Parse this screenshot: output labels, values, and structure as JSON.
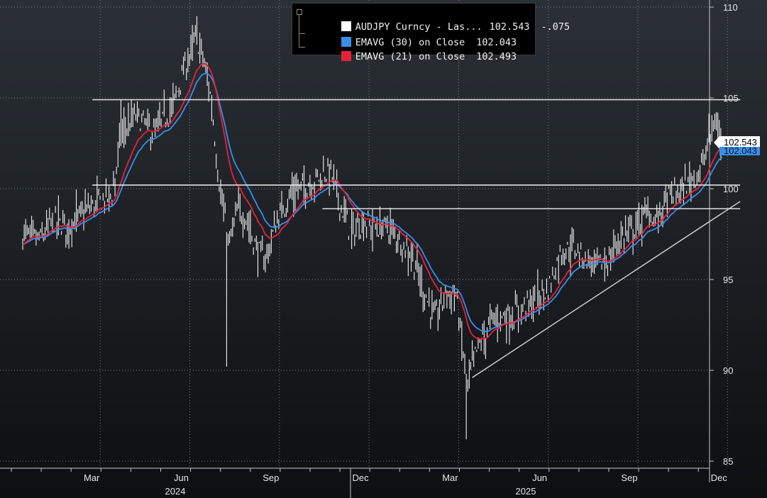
{
  "chart_data": {
    "type": "line",
    "instrument_label": "AUDJPY Curncy - Las...",
    "ylim": [
      85,
      110
    ],
    "y_ticks": [
      85,
      90,
      95,
      100,
      105,
      110
    ],
    "x_month_labels": [
      "Mar",
      "Jun",
      "Sep",
      "Dec",
      "Mar",
      "Jun",
      "Sep",
      "Dec"
    ],
    "x_month_index": [
      2,
      5,
      8,
      11,
      14,
      17,
      20,
      23
    ],
    "x_year_labels": [
      "2024",
      "2025"
    ],
    "grid": true,
    "legend_position": "top-center",
    "series": [
      {
        "name": "AUDJPY Curncy - Las...",
        "color": "#ffffff",
        "last": "102.543",
        "change": "-.075",
        "keypoints": [
          [
            0.0,
            97.5
          ],
          [
            0.6,
            97.2
          ],
          [
            1.0,
            98.2
          ],
          [
            1.5,
            97.9
          ],
          [
            2.0,
            98.6
          ],
          [
            2.5,
            99.2
          ],
          [
            3.0,
            99.7
          ],
          [
            3.3,
            103.0
          ],
          [
            3.8,
            104.0
          ],
          [
            4.4,
            103.0
          ],
          [
            5.0,
            104.4
          ],
          [
            5.4,
            106.5
          ],
          [
            5.8,
            108.3
          ],
          [
            6.0,
            107.5
          ],
          [
            6.3,
            105.0
          ],
          [
            6.6,
            100.0
          ],
          [
            6.9,
            96.8
          ],
          [
            7.2,
            98.8
          ],
          [
            7.5,
            98.4
          ],
          [
            7.8,
            96.8
          ],
          [
            8.1,
            96.0
          ],
          [
            8.5,
            98.2
          ],
          [
            9.0,
            99.8
          ],
          [
            9.5,
            100.2
          ],
          [
            10.0,
            100.7
          ],
          [
            10.3,
            101.0
          ],
          [
            10.6,
            99.3
          ],
          [
            11.0,
            97.5
          ],
          [
            11.4,
            98.2
          ],
          [
            11.8,
            97.8
          ],
          [
            12.2,
            97.9
          ],
          [
            12.6,
            97.2
          ],
          [
            13.0,
            96.5
          ],
          [
            13.4,
            94.5
          ],
          [
            13.8,
            92.8
          ],
          [
            14.2,
            94.3
          ],
          [
            14.5,
            94.2
          ],
          [
            14.7,
            91.5
          ],
          [
            14.9,
            89.0
          ],
          [
            15.1,
            90.7
          ],
          [
            15.4,
            91.8
          ],
          [
            15.7,
            92.7
          ],
          [
            16.0,
            93.0
          ],
          [
            16.4,
            93.0
          ],
          [
            16.8,
            93.5
          ],
          [
            17.2,
            93.9
          ],
          [
            17.6,
            94.5
          ],
          [
            18.0,
            96.5
          ],
          [
            18.4,
            96.8
          ],
          [
            18.8,
            96.2
          ],
          [
            19.2,
            95.8
          ],
          [
            19.6,
            96.0
          ],
          [
            20.0,
            97.3
          ],
          [
            20.3,
            97.6
          ],
          [
            20.6,
            98.0
          ],
          [
            20.9,
            98.7
          ],
          [
            21.2,
            98.2
          ],
          [
            21.6,
            99.6
          ],
          [
            22.0,
            99.8
          ],
          [
            22.4,
            100.5
          ],
          [
            22.8,
            101.4
          ],
          [
            23.0,
            103.0
          ],
          [
            23.2,
            103.7
          ],
          [
            23.42,
            102.543
          ]
        ]
      },
      {
        "name": "EMAVG (30) on Close",
        "color": "#3a8ee8",
        "last": "102.043",
        "span": 30
      },
      {
        "name": "EMAVG (21) on Close",
        "color": "#e8213a",
        "last": "102.493",
        "span": 21
      }
    ],
    "annotations": [
      {
        "type": "horizontal",
        "y": 104.9,
        "x_from": 2.0,
        "x_to": 23.9
      },
      {
        "type": "horizontal",
        "y": 100.2,
        "x_from": 2.0,
        "x_to": 23.9
      },
      {
        "type": "horizontal",
        "y": 98.9,
        "x_from": 9.7,
        "x_to": 23.9
      },
      {
        "type": "trendline",
        "from": [
          15.05,
          89.6
        ],
        "to": [
          23.9,
          99.3
        ]
      }
    ]
  }
}
